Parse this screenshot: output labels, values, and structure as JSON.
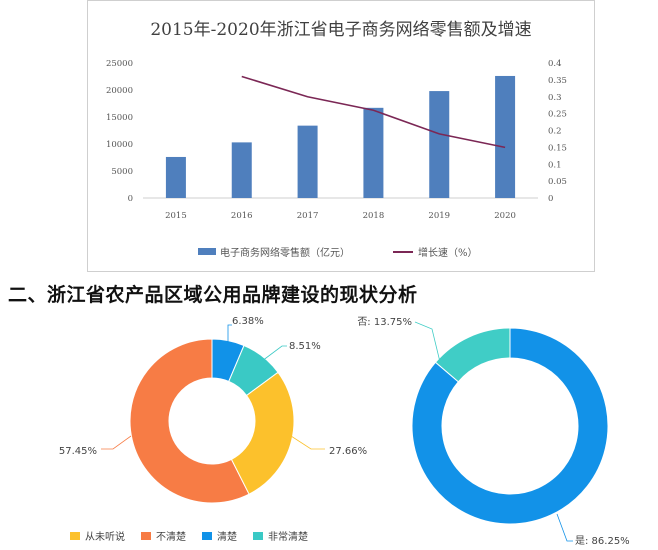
{
  "colors": {
    "bar": "#4f7fbd",
    "growth_line": "#7b2755",
    "donut_unheard": "#fcc12c",
    "donut_unclear": "#f77c45",
    "donut_clear": "#1192e8",
    "donut_very_clear": "#3ac9c5",
    "donut2_yes": "#1292e8",
    "donut2_no": "#40cdc6"
  },
  "chart_data": [
    {
      "type": "bar",
      "title": "2015年-2020年浙江省电子商务网络零售额及增速",
      "categories": [
        "2015",
        "2016",
        "2017",
        "2018",
        "2019",
        "2020"
      ],
      "series": [
        {
          "name": "电子商务网络零售额（亿元）",
          "type": "bar",
          "axis": "left",
          "values": [
            7600,
            10300,
            13400,
            16700,
            19800,
            22600
          ]
        },
        {
          "name": "增长速（%）",
          "type": "line",
          "axis": "right",
          "values": [
            null,
            0.36,
            0.3,
            0.26,
            0.19,
            0.15
          ]
        }
      ],
      "yticks_left": [
        "0",
        "5000",
        "10000",
        "15000",
        "20000",
        "25000"
      ],
      "yticks_right": [
        "0",
        "0.05",
        "0.1",
        "0.15",
        "0.2",
        "0.25",
        "0.3",
        "0.35",
        "0.4"
      ],
      "ylim_left": [
        0,
        25000
      ],
      "ylim_right": [
        0,
        0.4
      ],
      "legend_position": "bottom"
    },
    {
      "type": "pie",
      "donut": true,
      "slices": [
        {
          "name": "从未听说",
          "value": 27.66,
          "label": "27.66%",
          "color": "#fcc12c"
        },
        {
          "name": "不清楚",
          "value": 57.45,
          "label": "57.45%",
          "color": "#f77c45"
        },
        {
          "name": "清楚",
          "value": 6.38,
          "label": "6.38%",
          "color": "#1192e8"
        },
        {
          "name": "非常清楚",
          "value": 8.51,
          "label": "8.51%",
          "color": "#3ac9c5"
        }
      ],
      "slice_order_clockwise_from_top": [
        "清楚",
        "非常清楚",
        "从未听说",
        "不清楚"
      ],
      "legend_position": "bottom"
    },
    {
      "type": "pie",
      "donut": true,
      "slices": [
        {
          "name": "是",
          "value": 86.25,
          "label": "是: 86.25%",
          "color": "#1292e8"
        },
        {
          "name": "否",
          "value": 13.75,
          "label": "否: 13.75%",
          "color": "#40cdc6"
        }
      ]
    }
  ],
  "section_heading": "二、浙江省农产品区域公用品牌建设的现状分析",
  "legend": {
    "bar": "电子商务网络零售额（亿元）",
    "line": "增长速（%）",
    "donut": [
      "从未听说",
      "不清楚",
      "清楚",
      "非常清楚"
    ]
  }
}
